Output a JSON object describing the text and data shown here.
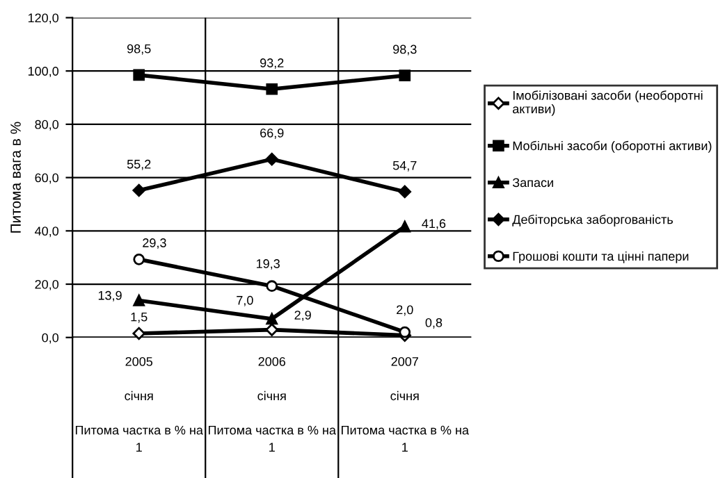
{
  "chart_data": {
    "type": "line",
    "ylabel": "Питома вага в %",
    "categories": [
      "2005\n\nсічня\n\nПитома частка в % на\n1",
      "2006\n\nсічня\n\nПитома частка в % на\n1",
      "2007\n\nсічня\n\nПитома частка в % на\n1"
    ],
    "series": [
      {
        "name": "Імобілізовані засоби (необоротні\nактиви)",
        "color": "#000000",
        "marker": "diamond",
        "values": [
          1.5,
          2.9,
          0.8
        ],
        "value_labels": [
          "1,5",
          "2,9",
          "0,8"
        ]
      },
      {
        "name": "Мобільні засоби (оборотні активи)",
        "color": "#000000",
        "marker": "square",
        "values": [
          98.5,
          93.2,
          98.3
        ],
        "value_labels": [
          "98,5",
          "93,2",
          "98,3"
        ]
      },
      {
        "name": "Запаси",
        "color": "#000000",
        "marker": "triangle",
        "values": [
          13.9,
          7.0,
          41.6
        ],
        "value_labels": [
          "13,9",
          "7,0",
          "41,6"
        ]
      },
      {
        "name": "Дебіторська заборгованість",
        "color": "#000000",
        "marker": "diamond",
        "values": [
          55.2,
          66.9,
          54.7
        ],
        "value_labels": [
          "55,2",
          "66,9",
          "54,7"
        ]
      },
      {
        "name": "Грошові кошти та цінні папери",
        "color": "#000000",
        "marker": "circle",
        "values": [
          29.3,
          19.3,
          2.0
        ],
        "value_labels": [
          "29,3",
          "19,3",
          "2,0"
        ]
      }
    ],
    "ylim": [
      0,
      120
    ],
    "yticks": [
      {
        "value": 0,
        "label": "0,0"
      },
      {
        "value": 20,
        "label": "20,0"
      },
      {
        "value": 40,
        "label": "40,0"
      },
      {
        "value": 60,
        "label": "60,0"
      },
      {
        "value": 80,
        "label": "80,0"
      },
      {
        "value": 100,
        "label": "100,0"
      },
      {
        "value": 120,
        "label": "120,0"
      }
    ],
    "grid": "y",
    "legend": "right",
    "line_style": "solid"
  }
}
